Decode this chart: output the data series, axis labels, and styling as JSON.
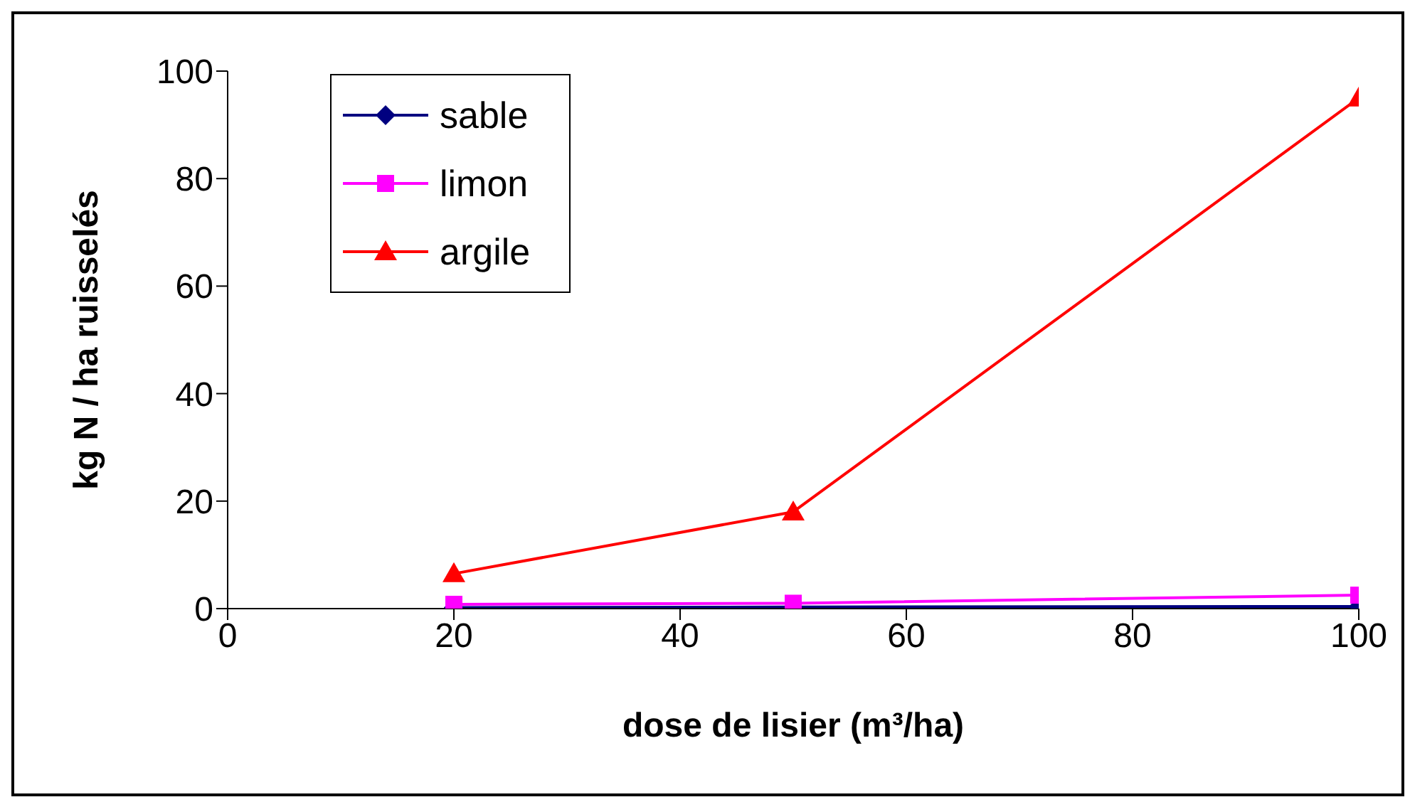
{
  "chart_data": {
    "type": "line",
    "xlabel": "dose de lisier (m³/ha)",
    "ylabel": "kg N / ha ruisselés",
    "x": [
      20,
      50,
      100
    ],
    "series": [
      {
        "name": "sable",
        "color": "#000080",
        "values": [
          0.2,
          0.3,
          0.4
        ],
        "marker": "diamond"
      },
      {
        "name": "limon",
        "color": "#ff00ff",
        "values": [
          0.8,
          1,
          2.5
        ],
        "marker": "square"
      },
      {
        "name": "argile",
        "color": "#ff0000",
        "values": [
          6.5,
          18,
          95
        ],
        "marker": "triangle"
      }
    ],
    "xlim": [
      0,
      100
    ],
    "xticks": [
      0,
      20,
      40,
      60,
      80,
      100
    ],
    "ylim": [
      0,
      100
    ],
    "yticks": [
      0,
      20,
      40,
      60,
      80,
      100
    ],
    "grid": false,
    "legend": "top left"
  }
}
